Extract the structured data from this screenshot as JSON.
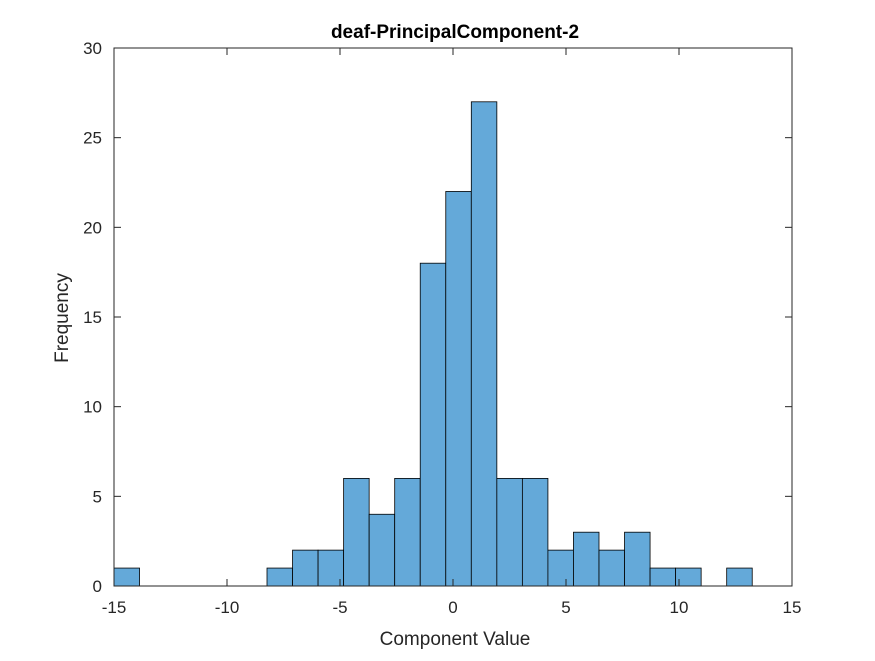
{
  "chart_data": {
    "type": "bar",
    "title": "deaf-PrincipalComponent-2",
    "xlabel": "Component Value",
    "ylabel": "Frequency",
    "xlim": [
      -15,
      15
    ],
    "ylim": [
      0,
      30
    ],
    "xticks": [
      -15,
      -10,
      -5,
      0,
      5,
      10,
      15
    ],
    "yticks": [
      0,
      5,
      10,
      15,
      20,
      25,
      30
    ],
    "grid": false,
    "bar_color": "#64a9d9",
    "edge_color": "#000000",
    "bins": [
      {
        "x0": -15.0,
        "x1": -13.87,
        "count": 1
      },
      {
        "x0": -8.23,
        "x1": -7.1,
        "count": 1
      },
      {
        "x0": -7.1,
        "x1": -5.97,
        "count": 2
      },
      {
        "x0": -5.97,
        "x1": -4.84,
        "count": 2
      },
      {
        "x0": -4.84,
        "x1": -3.71,
        "count": 6
      },
      {
        "x0": -3.71,
        "x1": -2.58,
        "count": 4
      },
      {
        "x0": -2.58,
        "x1": -1.45,
        "count": 6
      },
      {
        "x0": -1.45,
        "x1": -0.32,
        "count": 18
      },
      {
        "x0": -0.32,
        "x1": 0.81,
        "count": 22
      },
      {
        "x0": 0.81,
        "x1": 1.94,
        "count": 27
      },
      {
        "x0": 1.94,
        "x1": 3.07,
        "count": 6
      },
      {
        "x0": 3.07,
        "x1": 4.2,
        "count": 6
      },
      {
        "x0": 4.2,
        "x1": 5.33,
        "count": 2
      },
      {
        "x0": 5.33,
        "x1": 6.46,
        "count": 3
      },
      {
        "x0": 6.46,
        "x1": 7.59,
        "count": 2
      },
      {
        "x0": 7.59,
        "x1": 8.72,
        "count": 3
      },
      {
        "x0": 8.72,
        "x1": 9.85,
        "count": 1
      },
      {
        "x0": 9.85,
        "x1": 10.98,
        "count": 1
      },
      {
        "x0": 12.11,
        "x1": 13.24,
        "count": 1
      }
    ]
  }
}
